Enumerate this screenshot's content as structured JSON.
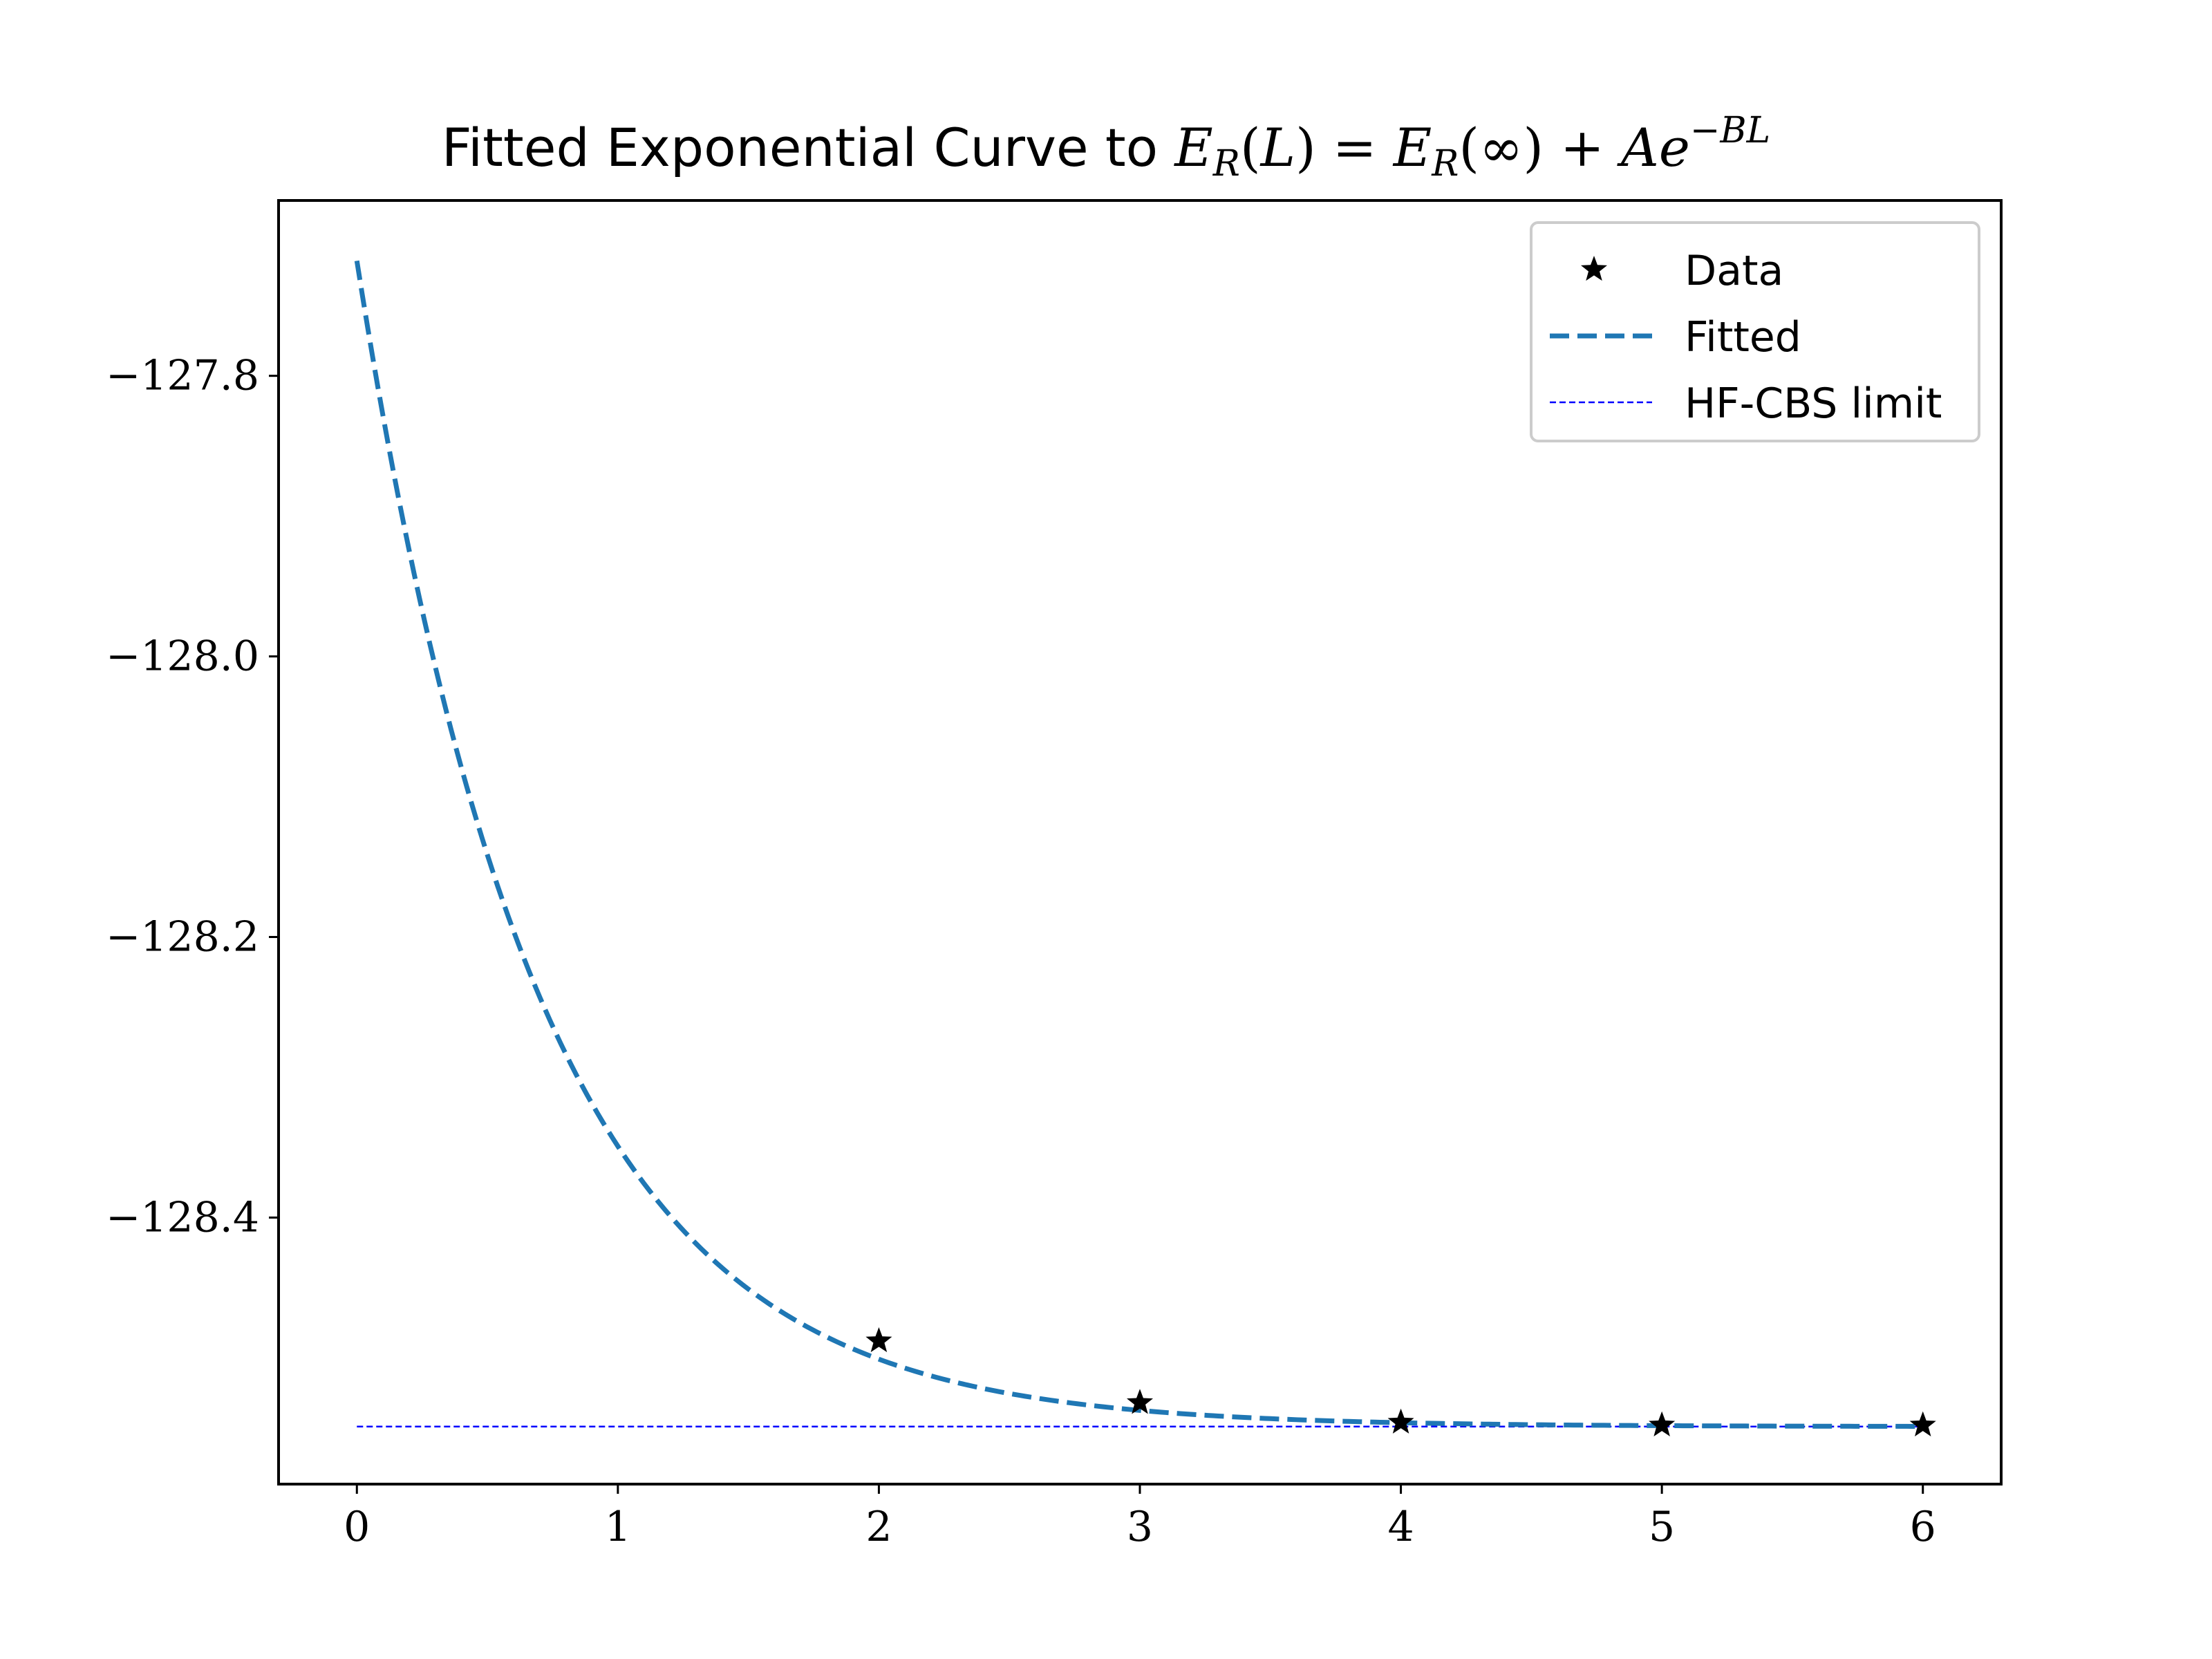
{
  "chart_data": {
    "type": "line",
    "title": {
      "prefix": "Fitted Exponential Curve to ",
      "formula": "E_R(L) = E_R(∞) + Ae^{-BL}"
    },
    "xlabel": "",
    "ylabel": "",
    "xlim": [
      -0.3,
      6.3
    ],
    "ylim": [
      -128.59,
      -127.675
    ],
    "x_ticks": [
      0,
      1,
      2,
      3,
      4,
      5,
      6
    ],
    "x_tick_labels": [
      "0",
      "1",
      "2",
      "3",
      "4",
      "5",
      "6"
    ],
    "y_ticks": [
      -127.8,
      -128.0,
      -128.2,
      -128.4
    ],
    "y_tick_labels": [
      "−127.8",
      "−128.0",
      "−128.2",
      "−128.4"
    ],
    "grid": false,
    "legend_position": "upper right",
    "series": [
      {
        "name": "Data",
        "style": "markers",
        "marker": "star",
        "color": "#000000",
        "x": [
          2,
          3,
          4,
          5,
          6
        ],
        "y": [
          -128.488,
          -128.532,
          -128.546,
          -128.548,
          -128.548
        ]
      },
      {
        "name": "Fitted",
        "style": "dashed-line",
        "color": "#1f77b4",
        "model": {
          "E_inf": -128.549,
          "A": 0.831,
          "B": 1.425
        },
        "x_range": [
          0,
          6
        ]
      },
      {
        "name": "HF-CBS limit",
        "style": "thin-dashed-line",
        "color": "#0000ff",
        "y_value": -128.549,
        "x_range": [
          0,
          6
        ]
      }
    ]
  }
}
